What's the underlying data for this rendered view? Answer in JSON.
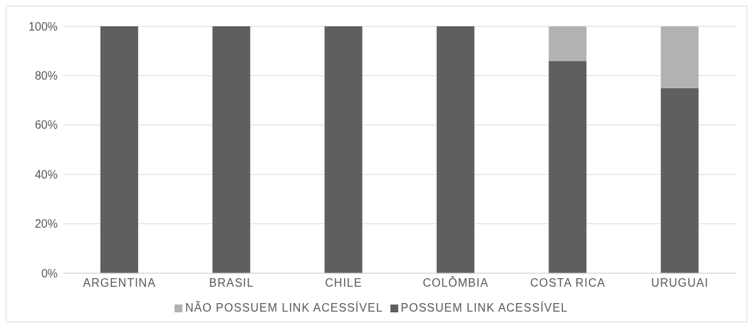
{
  "chart_data": {
    "type": "bar",
    "stacked": true,
    "categories": [
      "ARGENTINA",
      "BRASIL",
      "CHILE",
      "COLÔMBIA",
      "COSTA RICA",
      "URUGUAI"
    ],
    "series": [
      {
        "name": "POSSUEM LINK ACESSÍVEL",
        "color": "#5f5f5f",
        "values": [
          100,
          100,
          100,
          100,
          86,
          75
        ]
      },
      {
        "name": "NÃO POSSUEM LINK ACESSÍVEL",
        "color": "#b2b2b2",
        "values": [
          0,
          0,
          0,
          0,
          14,
          25
        ]
      }
    ],
    "ylim": [
      0,
      100
    ],
    "yticks": [
      {
        "value": 0,
        "label": "0%"
      },
      {
        "value": 20,
        "label": "20%"
      },
      {
        "value": 40,
        "label": "40%"
      },
      {
        "value": 60,
        "label": "60%"
      },
      {
        "value": 80,
        "label": "80%"
      },
      {
        "value": 100,
        "label": "100%"
      }
    ],
    "grid": "y",
    "legend": "bottom"
  }
}
